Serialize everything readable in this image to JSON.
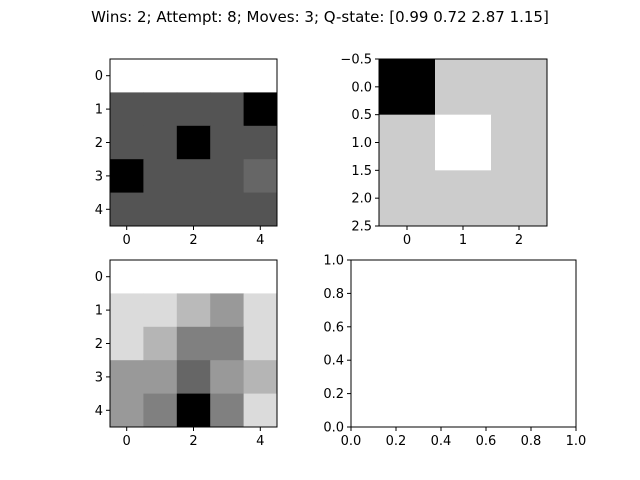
{
  "title": "Wins: 2; Attempt: 8; Moves: 3; Q-state: [0.99 0.72 2.87 1.15]",
  "chart_data": [
    {
      "type": "heatmap",
      "position": "top-left",
      "colormap": "gray",
      "rows": 5,
      "cols": 5,
      "values": [
        [
          1.0,
          1.0,
          1.0,
          1.0,
          1.0
        ],
        [
          0.33,
          0.33,
          0.33,
          0.33,
          0.0
        ],
        [
          0.33,
          0.33,
          0.0,
          0.33,
          0.33
        ],
        [
          0.0,
          0.33,
          0.33,
          0.33,
          0.4
        ],
        [
          0.33,
          0.33,
          0.33,
          0.33,
          0.33
        ]
      ],
      "xticks": [
        0,
        2,
        4
      ],
      "yticks": [
        0,
        1,
        2,
        3,
        4
      ],
      "xlim": [
        -0.5,
        4.5
      ],
      "ylim": [
        4.5,
        -0.5
      ]
    },
    {
      "type": "heatmap",
      "position": "top-right",
      "colormap": "gray",
      "rows": 3,
      "cols": 3,
      "values": [
        [
          0.0,
          0.8,
          0.8
        ],
        [
          0.8,
          1.0,
          0.8
        ],
        [
          0.8,
          0.8,
          0.8
        ]
      ],
      "xticks": [
        0,
        1,
        2
      ],
      "yticks": [
        -0.5,
        0.0,
        0.5,
        1.0,
        1.5,
        2.0,
        2.5
      ],
      "xlim": [
        -0.5,
        2.5
      ],
      "ylim": [
        2.5,
        -0.5
      ]
    },
    {
      "type": "heatmap",
      "position": "bottom-left",
      "colormap": "gray",
      "rows": 5,
      "cols": 5,
      "values": [
        [
          1.0,
          1.0,
          1.0,
          1.0,
          1.0
        ],
        [
          0.86,
          0.86,
          0.73,
          0.6,
          0.86
        ],
        [
          0.86,
          0.71,
          0.5,
          0.5,
          0.86
        ],
        [
          0.6,
          0.6,
          0.4,
          0.6,
          0.71
        ],
        [
          0.6,
          0.5,
          0.0,
          0.5,
          0.86
        ]
      ],
      "xticks": [
        0,
        2,
        4
      ],
      "yticks": [
        0,
        1,
        2,
        3,
        4
      ],
      "xlim": [
        -0.5,
        4.5
      ],
      "ylim": [
        4.5,
        -0.5
      ]
    },
    {
      "type": "scatter",
      "position": "bottom-right",
      "empty": true,
      "xticks": [
        0.0,
        0.2,
        0.4,
        0.6,
        0.8,
        1.0
      ],
      "yticks": [
        0.0,
        0.2,
        0.4,
        0.6,
        0.8,
        1.0
      ],
      "xlim": [
        0.0,
        1.0
      ],
      "ylim": [
        0.0,
        1.0
      ]
    }
  ]
}
